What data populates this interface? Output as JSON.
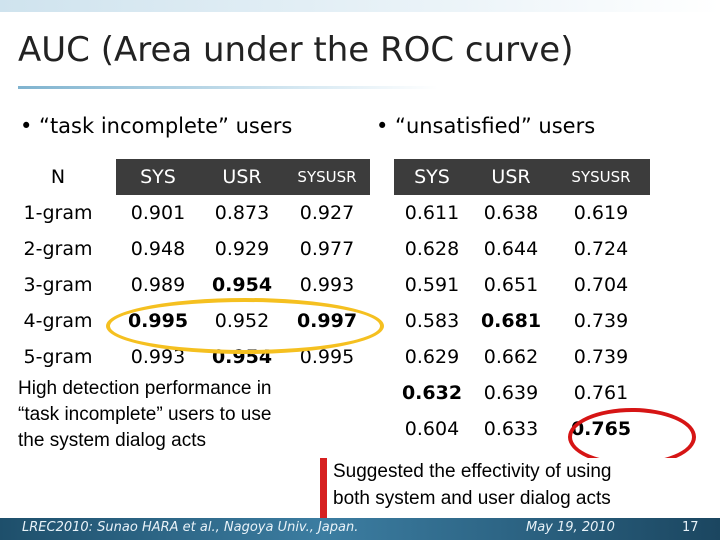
{
  "slide": {
    "title": "AUC (Area under the ROC curve)",
    "bullet_left": "• “task incomplete” users",
    "bullet_right": "• “unsatisfied” users"
  },
  "table": {
    "headers": [
      "N",
      "SYS",
      "USR",
      "SYSUSR",
      "SYS",
      "USR",
      "SYSUSR"
    ],
    "rows": [
      [
        "1-gram",
        "0.901",
        "0.873",
        "0.927",
        "0.611",
        "0.638",
        "0.619"
      ],
      [
        "2-gram",
        "0.948",
        "0.929",
        "0.977",
        "0.628",
        "0.644",
        "0.724"
      ],
      [
        "3-gram",
        "0.989",
        "0.954",
        "0.993",
        "0.591",
        "0.651",
        "0.704"
      ],
      [
        "4-gram",
        "0.995",
        "0.952",
        "0.997",
        "0.583",
        "0.681",
        "0.739"
      ],
      [
        "5-gram",
        "0.993",
        "0.954",
        "0.995",
        "0.629",
        "0.662",
        "0.739"
      ],
      [
        "",
        "",
        "",
        "",
        "0.632",
        "0.639",
        "0.761"
      ],
      [
        "",
        "",
        "",
        "",
        "0.604",
        "0.633",
        "0.765"
      ]
    ]
  },
  "callouts": {
    "left": [
      "High detection performance in",
      "“task incomplete” users to use",
      "the system dialog acts"
    ],
    "right": [
      "Suggested the effectivity of using",
      "both system and user dialog acts"
    ]
  },
  "footer": {
    "left": "LREC2010: Sunao HARA et al., Nagoya Univ., Japan.",
    "date": "May 19, 2010",
    "page": "17"
  },
  "colors": {
    "header_dark": "#3c3c3c",
    "highlight_yellow": "#f5c020",
    "highlight_red": "#d61515",
    "footer_blue": "#2d6585"
  }
}
